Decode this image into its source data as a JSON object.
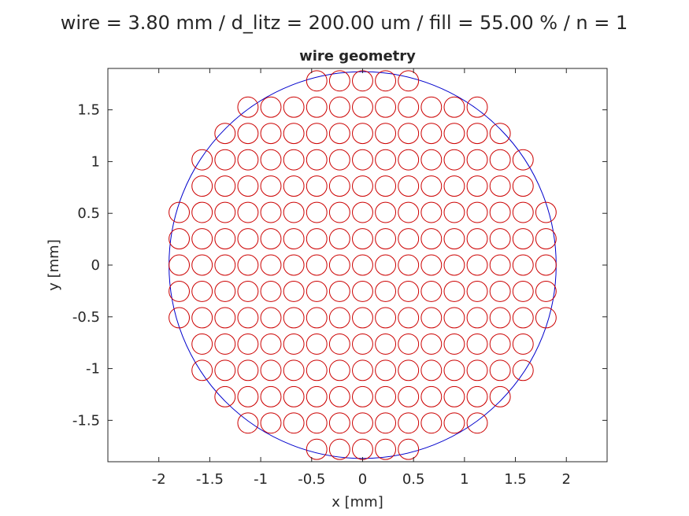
{
  "figure": {
    "suptitle": "wire = 3.80 mm / d_litz = 200.00 um / fill = 55.00 % / n = 1"
  },
  "chart_data": {
    "type": "scatter",
    "title": "wire geometry",
    "xlabel": "x [mm]",
    "ylabel": "y [mm]",
    "xlim": [
      -2.5,
      2.4
    ],
    "ylim": [
      -1.9,
      1.9
    ],
    "xticks": [
      -2,
      -1.5,
      -1,
      -0.5,
      0,
      0.5,
      1,
      1.5,
      2
    ],
    "xtick_labels": [
      "-2",
      "-1.5",
      "-1",
      "-0.5",
      "0",
      "0.5",
      "1",
      "1.5",
      "2"
    ],
    "yticks": [
      -1.5,
      -1,
      -0.5,
      0,
      0.5,
      1,
      1.5
    ],
    "ytick_labels": [
      "-1.5",
      "-1",
      "-0.5",
      "0",
      "0.5",
      "1",
      "1.5"
    ],
    "grid": false,
    "colors": {
      "wire": "#0000cc",
      "strand": "#cc0000",
      "axis": "#262626"
    },
    "wire": {
      "shape": "circle",
      "center": [
        0,
        0
      ],
      "diameter": 3.8
    },
    "strands": {
      "shape": "circle",
      "diameter": 0.2,
      "packing": "hexagonal",
      "pitch_x": 0.225,
      "row_spacing": 0.2543,
      "row_y": [
        -1.78,
        -1.526,
        -1.272,
        -1.017,
        -0.763,
        -0.509,
        -0.254,
        0,
        0.254,
        0.509,
        0.763,
        1.017,
        1.272,
        1.526,
        1.78
      ],
      "rows": [
        {
          "x_start": -0.45,
          "count": 5
        },
        {
          "x_start": -1.125,
          "count": 11
        },
        {
          "x_start": -1.35,
          "count": 13
        },
        {
          "x_start": -1.575,
          "count": 15
        },
        {
          "x_start": -1.575,
          "count": 15
        },
        {
          "x_start": -1.8,
          "count": 17
        },
        {
          "x_start": -1.8,
          "count": 17
        },
        {
          "x_start": -1.8,
          "count": 17
        },
        {
          "x_start": -1.8,
          "count": 17
        },
        {
          "x_start": -1.8,
          "count": 17
        },
        {
          "x_start": -1.575,
          "count": 15
        },
        {
          "x_start": -1.575,
          "count": 15
        },
        {
          "x_start": -1.35,
          "count": 13
        },
        {
          "x_start": -1.125,
          "count": 11
        },
        {
          "x_start": -0.45,
          "count": 5
        }
      ]
    }
  }
}
